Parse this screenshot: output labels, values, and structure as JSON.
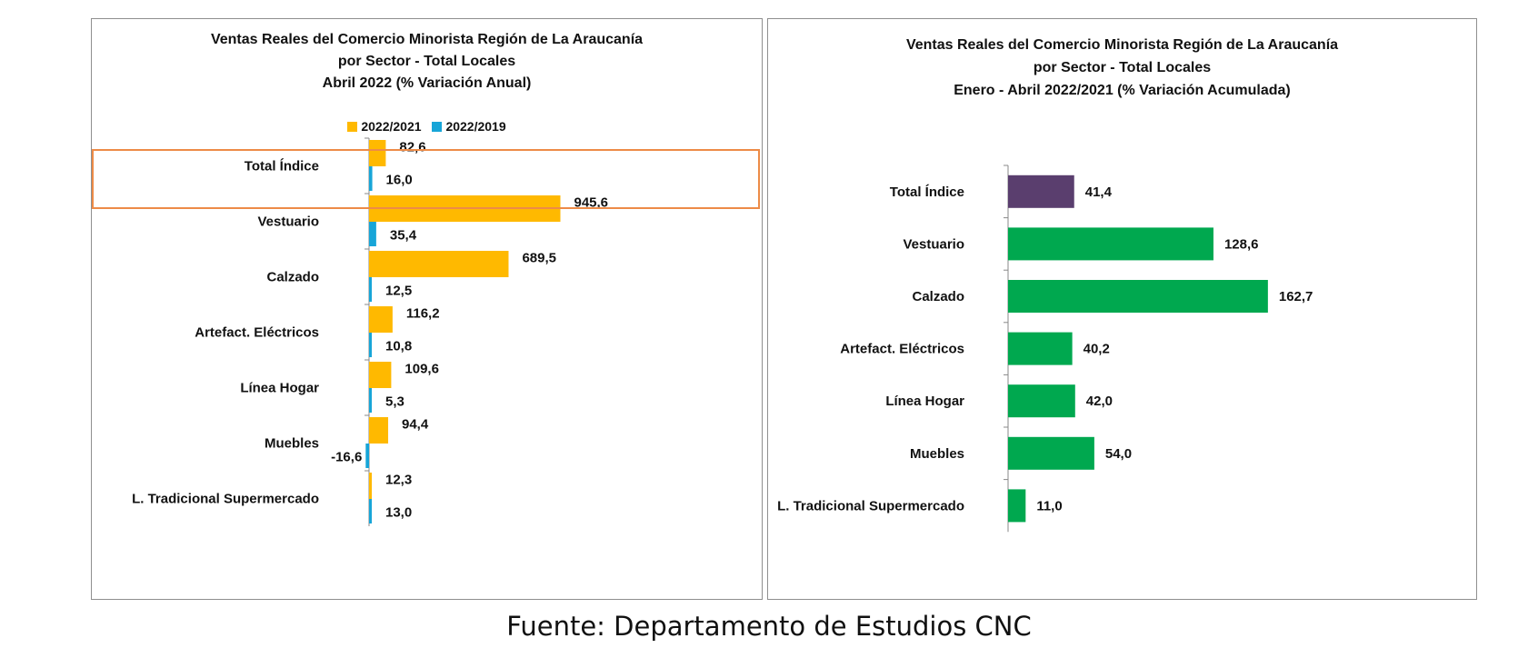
{
  "source": "Fuente: Departamento de Estudios CNC",
  "colors": {
    "s2021": "#ffb900",
    "s2019": "#17a5d8",
    "total": "#5a3e6e",
    "sector": "#00a84f",
    "highlight": "#ed8b47"
  },
  "chart_data": [
    {
      "type": "bar",
      "orientation": "horizontal",
      "title_lines": [
        "Ventas Reales del Comercio Minorista  Región de La Araucanía",
        "por Sector  - Total Locales",
        "Abril 2022 (% Variación Anual)"
      ],
      "legend": {
        "items": [
          "2022/2021",
          "2022/2019"
        ],
        "placement": "top"
      },
      "categories": [
        "Total Índice",
        "Vestuario",
        "Calzado",
        "Artefact. Eléctricos",
        "Línea Hogar",
        "Muebles",
        "L. Tradicional Supermercado"
      ],
      "series": [
        {
          "name": "2022/2021",
          "values": [
            82.6,
            945.6,
            689.5,
            116.2,
            109.6,
            94.4,
            12.3
          ],
          "labels": [
            "82,6",
            "945,6",
            "689,5",
            "116,2",
            "109,6",
            "94,4",
            "12,3"
          ]
        },
        {
          "name": "2022/2019",
          "values": [
            16.0,
            35.4,
            12.5,
            10.8,
            5.3,
            -16.6,
            13.0
          ],
          "labels": [
            "16,0",
            "35,4",
            "12,5",
            "10,8",
            "5,3",
            "-16,6",
            "13,0"
          ]
        }
      ],
      "highlighted_category": "Total Índice",
      "grid": false
    },
    {
      "type": "bar",
      "orientation": "horizontal",
      "title_lines": [
        "Ventas Reales del Comercio Minorista Región de La Araucanía",
        "por Sector - Total Locales",
        "Enero - Abril 2022/2021 (% Variación Acumulada)"
      ],
      "categories": [
        "Total Índice",
        "Vestuario",
        "Calzado",
        "Artefact. Eléctricos",
        "Línea Hogar",
        "Muebles",
        "L. Tradicional Supermercado"
      ],
      "values": [
        41.4,
        128.6,
        162.7,
        40.2,
        42.0,
        54.0,
        11.0
      ],
      "labels": [
        "41,4",
        "128,6",
        "162,7",
        "40,2",
        "42,0",
        "54,0",
        "11,0"
      ],
      "grid": false
    }
  ]
}
